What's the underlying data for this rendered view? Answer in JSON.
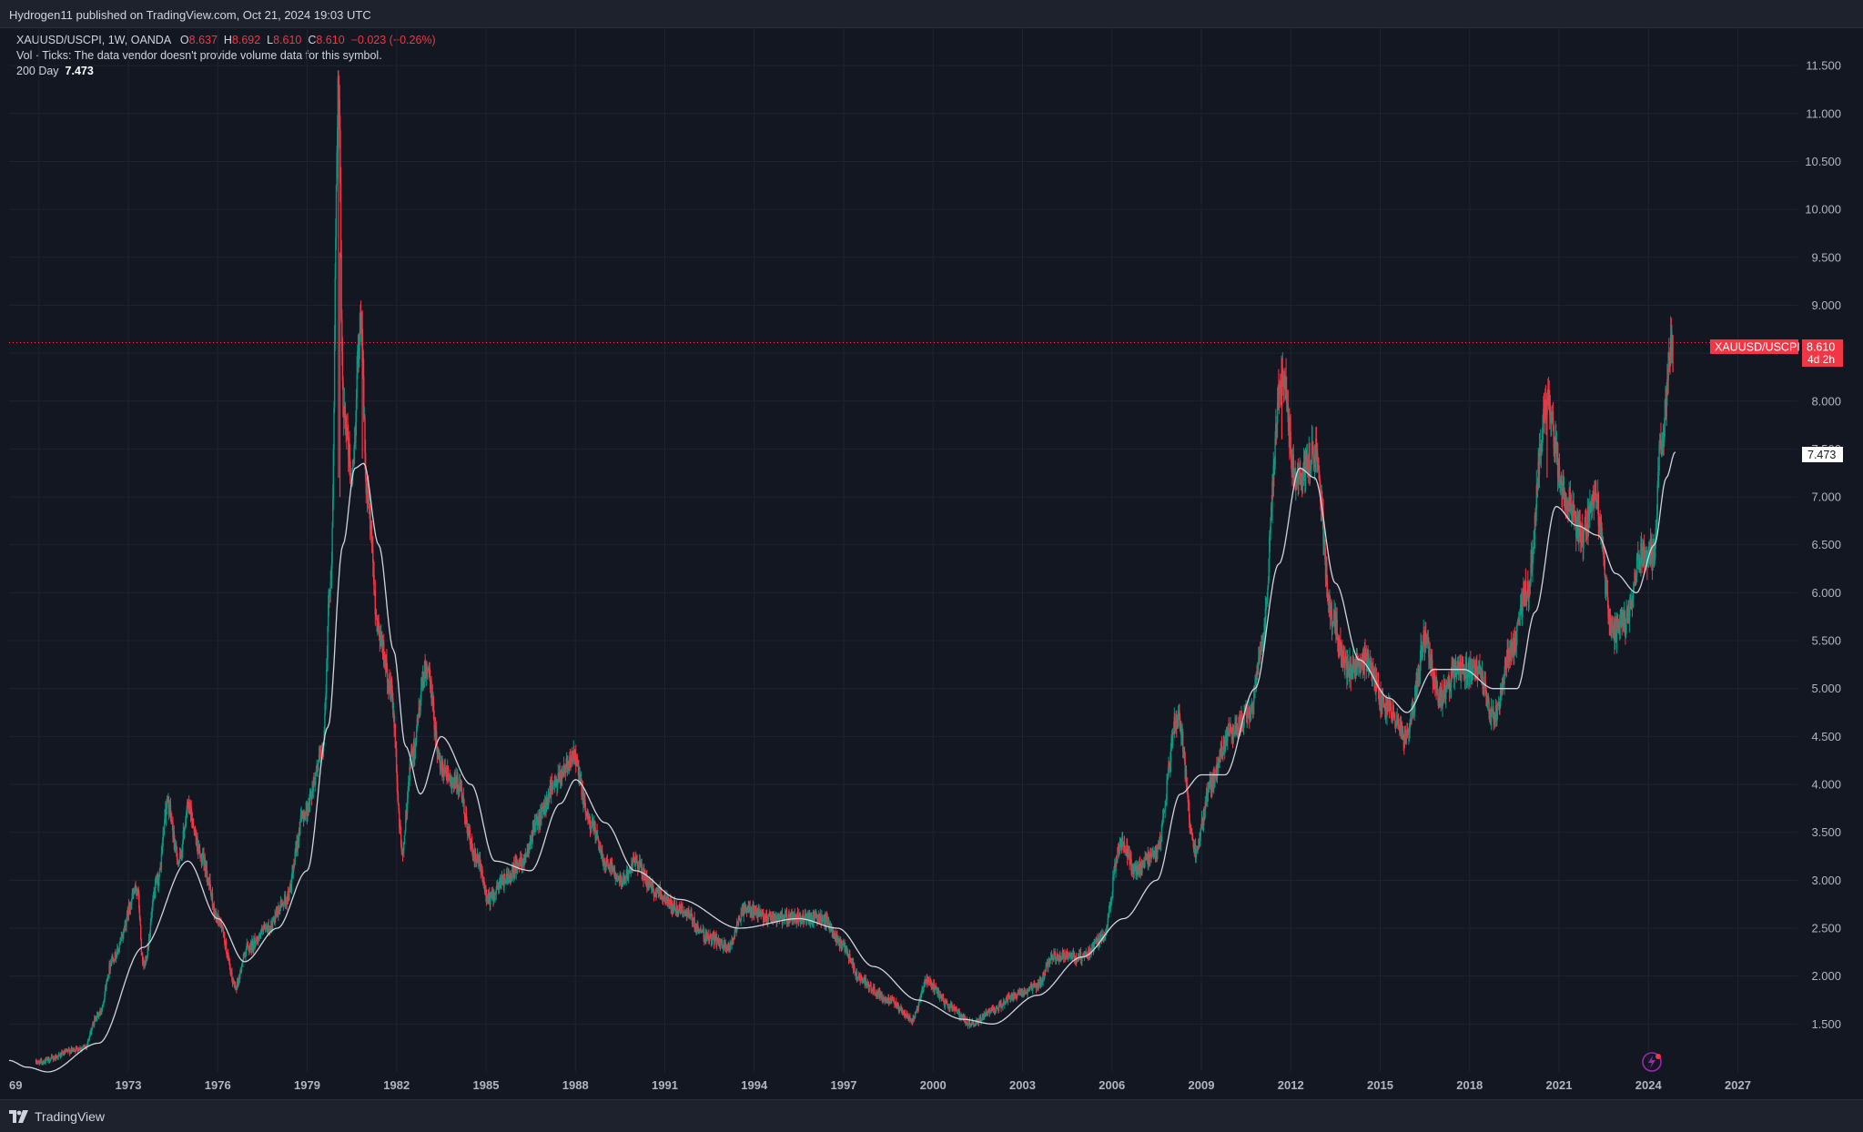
{
  "header": {
    "published_by": "Hydrogen11 published on TradingView.com, Oct 21, 2024 19:03 UTC"
  },
  "legend": {
    "symbol_line": "XAUUSD/USCPI, 1W, OANDA",
    "open_label": "O",
    "open": "8.637",
    "high_label": "H",
    "high": "8.692",
    "low_label": "L",
    "low": "8.610",
    "close_label": "C",
    "close": "8.610",
    "change": "−0.023 (−0.26%)",
    "vol_note": "Vol · Ticks: The data vendor doesn't provide volume data for this symbol.",
    "ma_label": "200 Day",
    "ma_value": "7.473"
  },
  "price_tags": {
    "symbol_tag": "XAUUSD/USCPI",
    "last_price": "8.610",
    "countdown": "4d 2h",
    "ma_tag": "7.473"
  },
  "footer": {
    "brand": "TradingView"
  },
  "colors": {
    "background": "#131722",
    "up": "#089981",
    "down": "#f23645",
    "ma_line": "#d1d4dc",
    "grid": "#1f2330"
  },
  "icons": {
    "logo": "tradingview-logo-icon",
    "flash": "lightning-bolt-icon"
  },
  "chart_data": {
    "type": "candlestick",
    "title": "",
    "series": [
      {
        "name": "XAUUSD/USCPI",
        "kind": "candles"
      },
      {
        "name": "200 Day",
        "kind": "moving-average"
      }
    ],
    "x_ticks": [
      "69",
      "1973",
      "1976",
      "1979",
      "1982",
      "1985",
      "1988",
      "1991",
      "1994",
      "1997",
      "2000",
      "2003",
      "2006",
      "2009",
      "2012",
      "2015",
      "2018",
      "2021",
      "2024",
      "2027"
    ],
    "y_ticks": [
      "1.500",
      "2.000",
      "2.500",
      "3.000",
      "3.500",
      "4.000",
      "4.500",
      "5.000",
      "5.500",
      "6.000",
      "6.500",
      "7.000",
      "7.500",
      "8.000",
      "8.500",
      "9.000",
      "9.500",
      "10.000",
      "10.500",
      "11.000",
      "11.500"
    ],
    "y_tick_values": [
      1.5,
      2.0,
      2.5,
      3.0,
      3.5,
      4.0,
      4.5,
      5.0,
      5.5,
      6.0,
      6.5,
      7.0,
      7.5,
      8.0,
      8.5,
      9.0,
      9.5,
      10.0,
      10.5,
      11.0,
      11.5
    ],
    "x_range": [
      1969.0,
      2029.0
    ],
    "y_range": [
      1.0,
      11.9
    ],
    "last_price": 8.61,
    "ma_last": 7.473,
    "price_path": [
      [
        1969.9,
        1.1
      ],
      [
        1971.5,
        1.25
      ],
      [
        1972.0,
        1.6
      ],
      [
        1972.5,
        2.2
      ],
      [
        1973.3,
        2.9
      ],
      [
        1973.5,
        2.1
      ],
      [
        1974.0,
        3.0
      ],
      [
        1974.3,
        3.8
      ],
      [
        1974.7,
        3.2
      ],
      [
        1975.0,
        3.75
      ],
      [
        1975.5,
        3.2
      ],
      [
        1976.0,
        2.6
      ],
      [
        1976.6,
        1.9
      ],
      [
        1977.0,
        2.3
      ],
      [
        1977.7,
        2.5
      ],
      [
        1978.3,
        2.8
      ],
      [
        1978.9,
        3.7
      ],
      [
        1979.5,
        4.3
      ],
      [
        1979.8,
        6.2
      ],
      [
        1980.05,
        11.35
      ],
      [
        1980.2,
        8.0
      ],
      [
        1980.5,
        7.2
      ],
      [
        1980.8,
        8.9
      ],
      [
        1981.0,
        7.0
      ],
      [
        1981.4,
        5.6
      ],
      [
        1981.8,
        5.0
      ],
      [
        1982.2,
        3.3
      ],
      [
        1982.5,
        4.3
      ],
      [
        1983.0,
        5.2
      ],
      [
        1983.5,
        4.2
      ],
      [
        1984.0,
        4.0
      ],
      [
        1984.7,
        3.2
      ],
      [
        1985.1,
        2.8
      ],
      [
        1985.6,
        3.0
      ],
      [
        1986.2,
        3.2
      ],
      [
        1986.7,
        3.6
      ],
      [
        1987.3,
        4.0
      ],
      [
        1987.9,
        4.3
      ],
      [
        1988.5,
        3.6
      ],
      [
        1989.0,
        3.2
      ],
      [
        1989.6,
        3.0
      ],
      [
        1990.0,
        3.2
      ],
      [
        1990.6,
        2.9
      ],
      [
        1991.5,
        2.7
      ],
      [
        1992.5,
        2.4
      ],
      [
        1993.1,
        2.3
      ],
      [
        1993.7,
        2.7
      ],
      [
        1994.5,
        2.6
      ],
      [
        1995.5,
        2.6
      ],
      [
        1996.3,
        2.6
      ],
      [
        1997.0,
        2.3
      ],
      [
        1997.5,
        2.0
      ],
      [
        1998.0,
        1.85
      ],
      [
        1998.5,
        1.75
      ],
      [
        1999.3,
        1.55
      ],
      [
        1999.8,
        1.95
      ],
      [
        2000.5,
        1.7
      ],
      [
        2001.3,
        1.5
      ],
      [
        2002.0,
        1.65
      ],
      [
        2002.8,
        1.8
      ],
      [
        2003.5,
        1.9
      ],
      [
        2004.0,
        2.2
      ],
      [
        2005.0,
        2.2
      ],
      [
        2005.7,
        2.4
      ],
      [
        2006.3,
        3.4
      ],
      [
        2006.8,
        3.1
      ],
      [
        2007.5,
        3.3
      ],
      [
        2008.2,
        4.7
      ],
      [
        2008.8,
        3.3
      ],
      [
        2009.3,
        4.0
      ],
      [
        2009.9,
        4.5
      ],
      [
        2010.6,
        4.7
      ],
      [
        2011.0,
        5.4
      ],
      [
        2011.7,
        8.3
      ],
      [
        2012.2,
        7.1
      ],
      [
        2012.8,
        7.5
      ],
      [
        2013.4,
        5.7
      ],
      [
        2013.9,
        5.2
      ],
      [
        2014.5,
        5.3
      ],
      [
        2015.2,
        4.8
      ],
      [
        2015.9,
        4.5
      ],
      [
        2016.5,
        5.5
      ],
      [
        2017.0,
        4.9
      ],
      [
        2017.6,
        5.2
      ],
      [
        2018.3,
        5.2
      ],
      [
        2018.8,
        4.7
      ],
      [
        2019.4,
        5.4
      ],
      [
        2019.9,
        6.0
      ],
      [
        2020.6,
        8.0
      ],
      [
        2021.2,
        7.0
      ],
      [
        2021.8,
        6.6
      ],
      [
        2022.2,
        7.0
      ],
      [
        2022.8,
        5.6
      ],
      [
        2023.2,
        5.7
      ],
      [
        2023.8,
        6.4
      ],
      [
        2024.2,
        6.4
      ],
      [
        2024.4,
        7.5
      ],
      [
        2024.8,
        8.6
      ]
    ],
    "ma_path": [
      [
        1969.0,
        1.12
      ],
      [
        1969.6,
        1.05
      ],
      [
        1970.3,
        1.0
      ],
      [
        1972.0,
        1.3
      ],
      [
        1973.5,
        2.3
      ],
      [
        1975.0,
        3.2
      ],
      [
        1976.0,
        2.6
      ],
      [
        1976.9,
        2.15
      ],
      [
        1978.0,
        2.5
      ],
      [
        1979.0,
        3.1
      ],
      [
        1979.7,
        4.6
      ],
      [
        1980.2,
        6.5
      ],
      [
        1980.6,
        7.3
      ],
      [
        1980.9,
        7.35
      ],
      [
        1981.4,
        6.5
      ],
      [
        1981.9,
        5.4
      ],
      [
        1982.3,
        4.4
      ],
      [
        1982.8,
        3.9
      ],
      [
        1983.5,
        4.5
      ],
      [
        1984.5,
        4.0
      ],
      [
        1985.3,
        3.2
      ],
      [
        1986.5,
        3.1
      ],
      [
        1987.5,
        3.8
      ],
      [
        1988.0,
        4.05
      ],
      [
        1989.0,
        3.6
      ],
      [
        1990.0,
        3.1
      ],
      [
        1991.5,
        2.8
      ],
      [
        1993.5,
        2.5
      ],
      [
        1995.5,
        2.6
      ],
      [
        1996.8,
        2.5
      ],
      [
        1998.0,
        2.1
      ],
      [
        1999.5,
        1.75
      ],
      [
        2001.0,
        1.55
      ],
      [
        2002.0,
        1.5
      ],
      [
        2003.5,
        1.8
      ],
      [
        2005.0,
        2.2
      ],
      [
        2006.4,
        2.6
      ],
      [
        2007.5,
        3.0
      ],
      [
        2008.3,
        3.9
      ],
      [
        2009.0,
        4.1
      ],
      [
        2009.8,
        4.1
      ],
      [
        2010.8,
        5.0
      ],
      [
        2011.6,
        6.3
      ],
      [
        2012.3,
        7.3
      ],
      [
        2012.8,
        7.2
      ],
      [
        2013.5,
        6.1
      ],
      [
        2014.3,
        5.3
      ],
      [
        2015.3,
        4.9
      ],
      [
        2015.9,
        4.75
      ],
      [
        2016.8,
        5.2
      ],
      [
        2017.8,
        5.2
      ],
      [
        2018.8,
        5.0
      ],
      [
        2019.6,
        5.0
      ],
      [
        2020.2,
        5.8
      ],
      [
        2020.9,
        6.9
      ],
      [
        2021.6,
        6.7
      ],
      [
        2022.3,
        6.6
      ],
      [
        2022.9,
        6.2
      ],
      [
        2023.6,
        6.0
      ],
      [
        2024.2,
        6.5
      ],
      [
        2024.6,
        7.2
      ],
      [
        2024.9,
        7.47
      ]
    ]
  }
}
